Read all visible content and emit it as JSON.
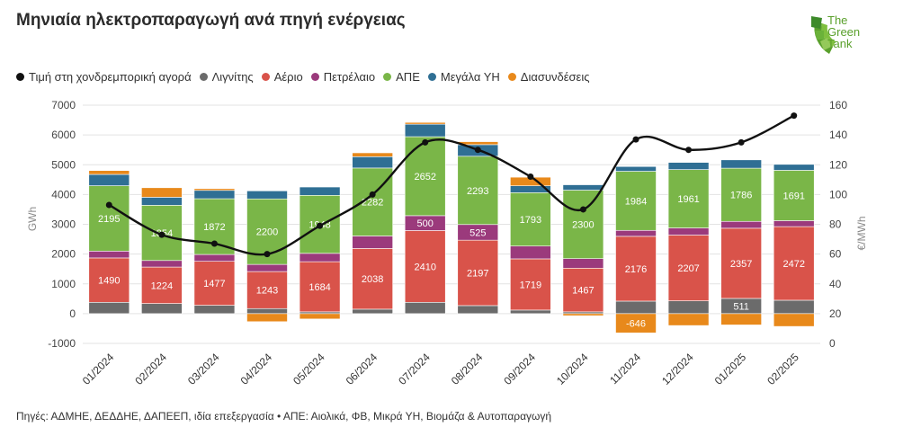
{
  "title": "Μηνιαία ηλεκτροπαραγωγή ανά πηγή ενέργειας",
  "logo": {
    "text": [
      "The",
      "Green",
      "Tank"
    ],
    "icon": "fan-leaf-logo-icon"
  },
  "legend": [
    {
      "label": "Τιμή στη χονδρεμπορική αγορά",
      "color": "#111111"
    },
    {
      "label": "Λιγνίτης",
      "color": "#6b6b6b"
    },
    {
      "label": "Αέριο",
      "color": "#d9534a"
    },
    {
      "label": "Πετρέλαιο",
      "color": "#9b3a7c"
    },
    {
      "label": "ΑΠΕ",
      "color": "#7ab648"
    },
    {
      "label": "Μεγάλα ΥΗ",
      "color": "#2f6f94"
    },
    {
      "label": "Διασυνδέσεις",
      "color": "#e8891b"
    }
  ],
  "footer": "Πηγές: ΑΔΜΗΕ, ΔΕΔΔΗΕ, ΔΑΠΕΕΠ, ιδία επεξεργασία • ΑΠΕ: Αιολικά, ΦΒ, Μικρά ΥΗ, Βιομάζα & Αυτοπαραγωγή",
  "chart_data": {
    "type": "bar",
    "stacked": true,
    "categories": [
      "01/2024",
      "02/2024",
      "03/2024",
      "04/2024",
      "05/2024",
      "06/2024",
      "07/2024",
      "08/2024",
      "09/2024",
      "10/2024",
      "11/2024",
      "12/2024",
      "01/2025",
      "02/2025"
    ],
    "ylabel": "GWh",
    "y2label": "€/MWh",
    "ylim": [
      -1000,
      7000
    ],
    "yticks": [
      -1000,
      0,
      1000,
      2000,
      3000,
      4000,
      5000,
      6000,
      7000
    ],
    "y2lim": [
      0,
      160
    ],
    "y2ticks": [
      0,
      20,
      40,
      60,
      80,
      100,
      120,
      140,
      160
    ],
    "grid": true,
    "legend_position": "top",
    "series": [
      {
        "name": "Λιγνίτης",
        "color": "#6b6b6b",
        "values": [
          380,
          340,
          280,
          170,
          60,
          150,
          380,
          270,
          120,
          60,
          420,
          430,
          511,
          450
        ],
        "labels": [
          "",
          "",
          "",
          "",
          "",
          "",
          "",
          "",
          "",
          "",
          "",
          "",
          "511",
          ""
        ]
      },
      {
        "name": "Αέριο",
        "color": "#d9534a",
        "values": [
          1490,
          1224,
          1477,
          1243,
          1684,
          2038,
          2410,
          2197,
          1719,
          1467,
          2176,
          2207,
          2357,
          2472
        ],
        "labels": [
          "1490",
          "1224",
          "1477",
          "1243",
          "1684",
          "2038",
          "2410",
          "2197",
          "1719",
          "1467",
          "2176",
          "2207",
          "2357",
          "2472"
        ]
      },
      {
        "name": "Πετρέλαιο",
        "color": "#9b3a7c",
        "values": [
          230,
          220,
          230,
          240,
          280,
          420,
          500,
          525,
          430,
          320,
          200,
          240,
          230,
          200
        ],
        "labels": [
          "",
          "",
          "",
          "",
          "",
          "",
          "500",
          "525",
          "",
          "",
          "",
          "",
          "",
          ""
        ]
      },
      {
        "name": "ΑΠΕ",
        "color": "#7ab648",
        "values": [
          2195,
          1854,
          1872,
          2200,
          1948,
          2282,
          2652,
          2293,
          1793,
          2300,
          1984,
          1961,
          1786,
          1691
        ],
        "labels": [
          "2195",
          "1854",
          "1872",
          "2200",
          "1948",
          "2282",
          "2652",
          "2293",
          "1793",
          "2300",
          "1984",
          "1961",
          "1786",
          "1691"
        ]
      },
      {
        "name": "Μεγάλα ΥΗ",
        "color": "#2f6f94",
        "values": [
          380,
          270,
          280,
          270,
          280,
          380,
          420,
          390,
          230,
          180,
          160,
          240,
          280,
          200
        ],
        "labels": [
          "",
          "",
          "",
          "",
          "",
          "",
          "",
          "",
          "",
          "",
          "",
          "",
          "",
          ""
        ]
      },
      {
        "name": "Διασυνδέσεις",
        "color": "#e8891b",
        "values": [
          130,
          320,
          60,
          -270,
          -180,
          130,
          60,
          100,
          290,
          -70,
          -646,
          -400,
          -380,
          -430
        ],
        "labels": [
          "",
          "",
          "",
          "",
          "",
          "",
          "",
          "",
          "",
          "",
          "-646",
          "",
          "",
          ""
        ]
      }
    ],
    "line": {
      "name": "Τιμή στη χονδρεμπορική αγορά",
      "color": "#111111",
      "axis": "right",
      "values": [
        93,
        73,
        67,
        60,
        79,
        100,
        135,
        130,
        112,
        90,
        137,
        130,
        135,
        153
      ]
    }
  }
}
